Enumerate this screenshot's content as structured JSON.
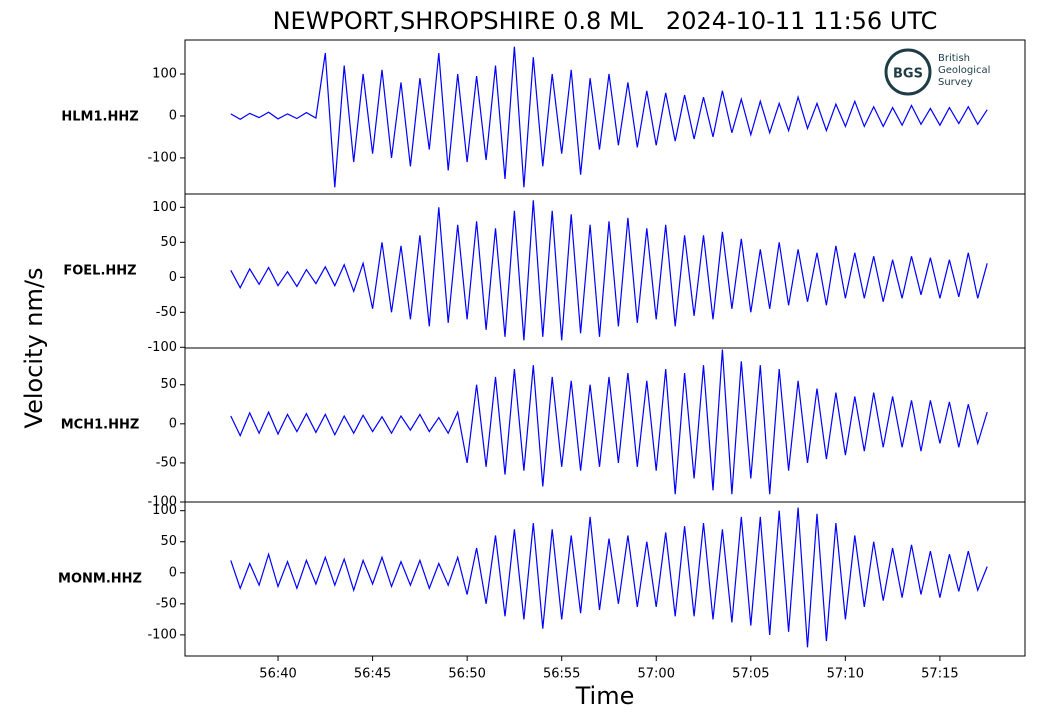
{
  "chart_data": [
    {
      "type": "line",
      "title": "NEWPORT,SHROPSHIRE 0.8 ML   2024-10-11 11:56 UTC",
      "y_label": "Velocity nm/s",
      "x": [
        37.5,
        38,
        38.5,
        39,
        39.5,
        40,
        40.5,
        41,
        41.5,
        42,
        42.5,
        43,
        43.5,
        44,
        44.5,
        45,
        45.5,
        46,
        46.5,
        47,
        47.5,
        48,
        48.5,
        49,
        49.5,
        50,
        50.5,
        51,
        51.5,
        52,
        52.5,
        53,
        53.5,
        54,
        54.5,
        55,
        55.5,
        56,
        56.5,
        57,
        57.5,
        58,
        58.5,
        59,
        59.5,
        60,
        60.5,
        61,
        61.5,
        62,
        62.5,
        63,
        63.5,
        64,
        64.5,
        65,
        65.5,
        66,
        66.5,
        67,
        67.5,
        68,
        68.5,
        69,
        69.5,
        70,
        70.5,
        71,
        71.5,
        72,
        72.5,
        73,
        73.5,
        74,
        74.5,
        75,
        75.5,
        76,
        76.5,
        77,
        77.5
      ],
      "series": [
        {
          "name": "HLM1.HHZ",
          "color": "#0000ff",
          "values": [
            5,
            -8,
            6,
            -4,
            9,
            -7,
            5,
            -6,
            8,
            -5,
            150,
            -170,
            120,
            -110,
            100,
            -90,
            110,
            -100,
            80,
            -120,
            90,
            -80,
            150,
            -130,
            100,
            -110,
            95,
            -105,
            120,
            -150,
            165,
            -170,
            140,
            -120,
            100,
            -90,
            110,
            -140,
            90,
            -80,
            100,
            -70,
            80,
            -75,
            60,
            -70,
            55,
            -60,
            50,
            -55,
            45,
            -50,
            60,
            -40,
            40,
            -45,
            35,
            -40,
            30,
            -35,
            45,
            -30,
            30,
            -35,
            28,
            -25,
            35,
            -25,
            22,
            -25,
            20,
            -22,
            25,
            -20,
            18,
            -22,
            20,
            -18,
            22,
            -20,
            15
          ]
        }
      ],
      "xlim": [
        35.08,
        79.5
      ],
      "ylim": [
        -186,
        181
      ],
      "yticks": [
        -100,
        0,
        100
      ]
    },
    {
      "type": "line",
      "x": [
        37.5,
        38,
        38.5,
        39,
        39.5,
        40,
        40.5,
        41,
        41.5,
        42,
        42.5,
        43,
        43.5,
        44,
        44.5,
        45,
        45.5,
        46,
        46.5,
        47,
        47.5,
        48,
        48.5,
        49,
        49.5,
        50,
        50.5,
        51,
        51.5,
        52,
        52.5,
        53,
        53.5,
        54,
        54.5,
        55,
        55.5,
        56,
        56.5,
        57,
        57.5,
        58,
        58.5,
        59,
        59.5,
        60,
        60.5,
        61,
        61.5,
        62,
        62.5,
        63,
        63.5,
        64,
        64.5,
        65,
        65.5,
        66,
        66.5,
        67,
        67.5,
        68,
        68.5,
        69,
        69.5,
        70,
        70.5,
        71,
        71.5,
        72,
        72.5,
        73,
        73.5,
        74,
        74.5,
        75,
        75.5,
        76,
        76.5,
        77,
        77.5
      ],
      "series": [
        {
          "name": "FOEL.HHZ",
          "color": "#0000ff",
          "values": [
            10,
            -15,
            12,
            -10,
            14,
            -12,
            8,
            -13,
            11,
            -9,
            15,
            -12,
            18,
            -20,
            20,
            -45,
            50,
            -50,
            45,
            -60,
            60,
            -70,
            100,
            -65,
            75,
            -60,
            80,
            -75,
            70,
            -85,
            95,
            -90,
            110,
            -85,
            95,
            -90,
            90,
            -80,
            75,
            -85,
            80,
            -70,
            85,
            -65,
            70,
            -60,
            75,
            -70,
            60,
            -55,
            60,
            -60,
            65,
            -45,
            55,
            -50,
            40,
            -45,
            50,
            -40,
            40,
            -35,
            35,
            -40,
            45,
            -30,
            35,
            -30,
            30,
            -35,
            25,
            -30,
            30,
            -25,
            28,
            -30,
            25,
            -28,
            35,
            -30,
            20
          ]
        }
      ],
      "xlim": [
        35.08,
        79.5
      ],
      "ylim": [
        -101,
        119
      ],
      "yticks": [
        -100,
        -50,
        0,
        50,
        100
      ]
    },
    {
      "type": "line",
      "x": [
        37.5,
        38,
        38.5,
        39,
        39.5,
        40,
        40.5,
        41,
        41.5,
        42,
        42.5,
        43,
        43.5,
        44,
        44.5,
        45,
        45.5,
        46,
        46.5,
        47,
        47.5,
        48,
        48.5,
        49,
        49.5,
        50,
        50.5,
        51,
        51.5,
        52,
        52.5,
        53,
        53.5,
        54,
        54.5,
        55,
        55.5,
        56,
        56.5,
        57,
        57.5,
        58,
        58.5,
        59,
        59.5,
        60,
        60.5,
        61,
        61.5,
        62,
        62.5,
        63,
        63.5,
        64,
        64.5,
        65,
        65.5,
        66,
        66.5,
        67,
        67.5,
        68,
        68.5,
        69,
        69.5,
        70,
        70.5,
        71,
        71.5,
        72,
        72.5,
        73,
        73.5,
        74,
        74.5,
        75,
        75.5,
        76,
        76.5,
        77,
        77.5
      ],
      "series": [
        {
          "name": "MCH1.HHZ",
          "color": "#0000ff",
          "values": [
            10,
            -15,
            14,
            -12,
            15,
            -13,
            12,
            -10,
            13,
            -11,
            12,
            -14,
            10,
            -12,
            11,
            -10,
            9,
            -12,
            10,
            -8,
            12,
            -10,
            8,
            -12,
            15,
            -50,
            50,
            -55,
            60,
            -65,
            70,
            -60,
            75,
            -80,
            60,
            -55,
            55,
            -60,
            50,
            -55,
            60,
            -50,
            65,
            -55,
            55,
            -60,
            70,
            -90,
            65,
            -70,
            75,
            -85,
            95,
            -90,
            80,
            -70,
            75,
            -90,
            70,
            -60,
            55,
            -50,
            45,
            -45,
            40,
            -40,
            35,
            -35,
            40,
            -30,
            35,
            -30,
            30,
            -35,
            30,
            -25,
            28,
            -30,
            25,
            -25,
            15
          ]
        }
      ],
      "xlim": [
        35.08,
        79.5
      ],
      "ylim": [
        -100,
        97
      ],
      "yticks": [
        -100,
        -50,
        0,
        50
      ]
    },
    {
      "type": "line",
      "x_label": "Time",
      "x": [
        37.5,
        38,
        38.5,
        39,
        39.5,
        40,
        40.5,
        41,
        41.5,
        42,
        42.5,
        43,
        43.5,
        44,
        44.5,
        45,
        45.5,
        46,
        46.5,
        47,
        47.5,
        48,
        48.5,
        49,
        49.5,
        50,
        50.5,
        51,
        51.5,
        52,
        52.5,
        53,
        53.5,
        54,
        54.5,
        55,
        55.5,
        56,
        56.5,
        57,
        57.5,
        58,
        58.5,
        59,
        59.5,
        60,
        60.5,
        61,
        61.5,
        62,
        62.5,
        63,
        63.5,
        64,
        64.5,
        65,
        65.5,
        66,
        66.5,
        67,
        67.5,
        68,
        68.5,
        69,
        69.5,
        70,
        70.5,
        71,
        71.5,
        72,
        72.5,
        73,
        73.5,
        74,
        74.5,
        75,
        75.5,
        76,
        76.5,
        77,
        77.5
      ],
      "series": [
        {
          "name": "MONM.HHZ",
          "color": "#0000ff",
          "values": [
            20,
            -25,
            15,
            -20,
            30,
            -22,
            18,
            -25,
            20,
            -18,
            25,
            -20,
            22,
            -28,
            20,
            -18,
            25,
            -22,
            18,
            -20,
            20,
            -25,
            15,
            -20,
            25,
            -35,
            40,
            -50,
            60,
            -70,
            70,
            -75,
            80,
            -90,
            70,
            -75,
            60,
            -65,
            90,
            -60,
            55,
            -50,
            60,
            -55,
            50,
            -55,
            65,
            -70,
            75,
            -70,
            80,
            -75,
            70,
            -80,
            90,
            -85,
            90,
            -100,
            100,
            -95,
            105,
            -120,
            95,
            -110,
            80,
            -75,
            60,
            -55,
            50,
            -45,
            40,
            -40,
            45,
            -35,
            35,
            -40,
            30,
            -30,
            35,
            -28,
            10
          ]
        }
      ],
      "xlim": [
        35.08,
        79.5
      ],
      "ylim": [
        -134,
        114
      ],
      "yticks": [
        -100,
        -50,
        0,
        50,
        100
      ],
      "xticks": [
        {
          "value": 40,
          "label": "56:40"
        },
        {
          "value": 45,
          "label": "56:45"
        },
        {
          "value": 50,
          "label": "56:50"
        },
        {
          "value": 55,
          "label": "56:55"
        },
        {
          "value": 60,
          "label": "57:00"
        },
        {
          "value": 65,
          "label": "57:05"
        },
        {
          "value": 70,
          "label": "57:10"
        },
        {
          "value": 75,
          "label": "57:15"
        }
      ]
    }
  ],
  "logo": {
    "abbr": "BGS",
    "lines": [
      "British",
      "Geological",
      "Survey"
    ]
  }
}
